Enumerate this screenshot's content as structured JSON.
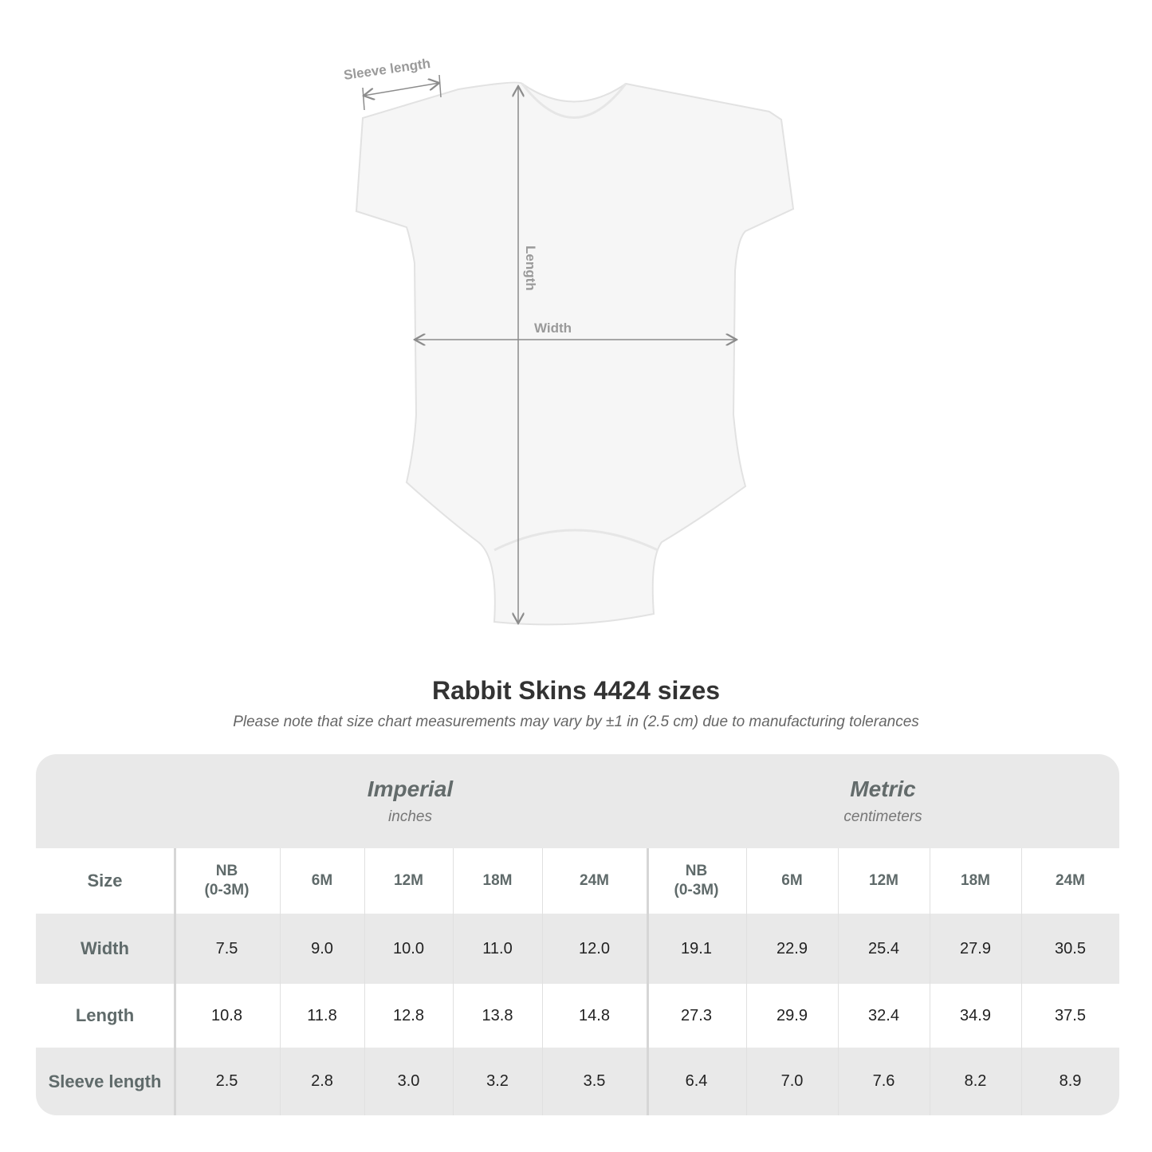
{
  "diagram": {
    "labels": {
      "sleeve": "Sleeve length",
      "length": "Length",
      "width": "Width"
    },
    "garment_color": "#f7f7f7",
    "arrow_color": "#8c8c8c"
  },
  "title": "Rabbit Skins 4424 sizes",
  "note": "Please note that size chart measurements may vary by ±1 in (2.5 cm) due to manufacturing tolerances",
  "table": {
    "imperial": {
      "title": "Imperial",
      "unit": "inches"
    },
    "metric": {
      "title": "Metric",
      "unit": "centimeters"
    },
    "size_label": "Size",
    "sizes": [
      "NB\n(0-3M)",
      "6M",
      "12M",
      "18M",
      "24M",
      "NB\n(0-3M)",
      "6M",
      "12M",
      "18M",
      "24M"
    ],
    "rows": [
      {
        "label": "Width",
        "values": [
          "7.5",
          "9.0",
          "10.0",
          "11.0",
          "12.0",
          "19.1",
          "22.9",
          "25.4",
          "27.9",
          "30.5"
        ]
      },
      {
        "label": "Length",
        "values": [
          "10.8",
          "11.8",
          "12.8",
          "13.8",
          "14.8",
          "27.3",
          "29.9",
          "32.4",
          "34.9",
          "37.5"
        ]
      },
      {
        "label": "Sleeve length",
        "values": [
          "2.5",
          "2.8",
          "3.0",
          "3.2",
          "3.5",
          "6.4",
          "7.0",
          "7.6",
          "8.2",
          "8.9"
        ]
      }
    ]
  }
}
